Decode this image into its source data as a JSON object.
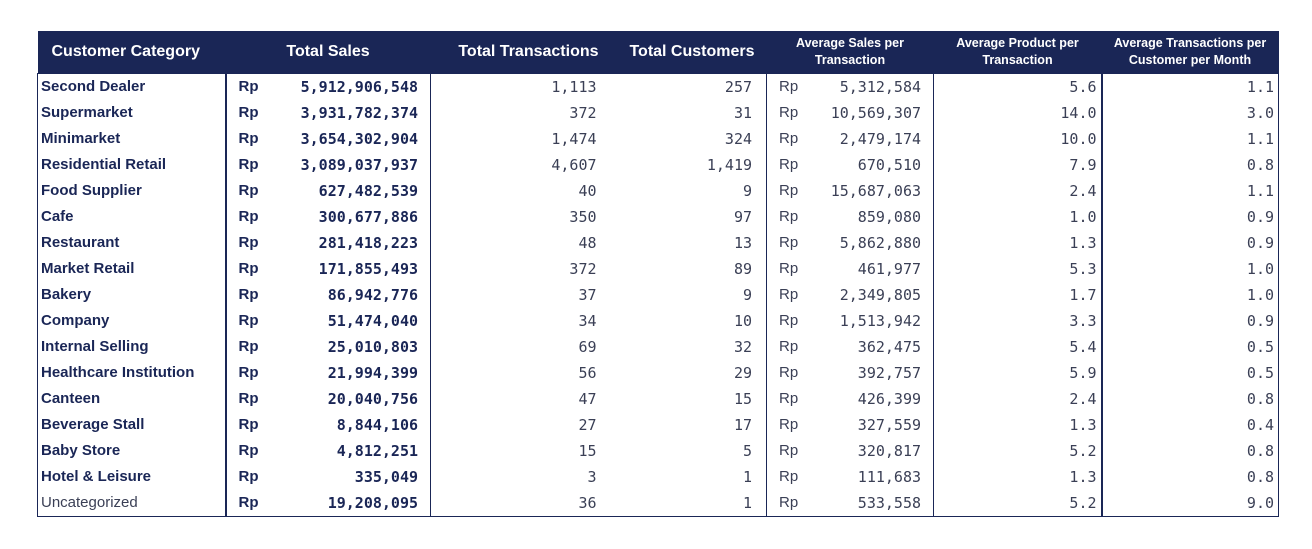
{
  "headers": {
    "category": "Customer Category",
    "total_sales": "Total Sales",
    "total_transactions": "Total Transactions",
    "total_customers": "Total Customers",
    "avg_sales_line1": "Average Sales per",
    "avg_sales_line2": "Transaction",
    "avg_product_line1": "Average Product per",
    "avg_product_line2": "Transaction",
    "avg_trans_line1": "Average Transactions per",
    "avg_trans_line2": "Customer per Month"
  },
  "currency": "Rp",
  "rows": [
    {
      "category": "Second Dealer",
      "total_sales": "5,912,906,548",
      "transactions": "1,113",
      "customers": "257",
      "avg_sales": "5,312,584",
      "avg_product": "5.6",
      "avg_trans": "1.1"
    },
    {
      "category": "Supermarket",
      "total_sales": "3,931,782,374",
      "transactions": "372",
      "customers": "31",
      "avg_sales": "10,569,307",
      "avg_product": "14.0",
      "avg_trans": "3.0"
    },
    {
      "category": "Minimarket",
      "total_sales": "3,654,302,904",
      "transactions": "1,474",
      "customers": "324",
      "avg_sales": "2,479,174",
      "avg_product": "10.0",
      "avg_trans": "1.1"
    },
    {
      "category": "Residential Retail",
      "total_sales": "3,089,037,937",
      "transactions": "4,607",
      "customers": "1,419",
      "avg_sales": "670,510",
      "avg_product": "7.9",
      "avg_trans": "0.8"
    },
    {
      "category": "Food Supplier",
      "total_sales": "627,482,539",
      "transactions": "40",
      "customers": "9",
      "avg_sales": "15,687,063",
      "avg_product": "2.4",
      "avg_trans": "1.1"
    },
    {
      "category": "Cafe",
      "total_sales": "300,677,886",
      "transactions": "350",
      "customers": "97",
      "avg_sales": "859,080",
      "avg_product": "1.0",
      "avg_trans": "0.9"
    },
    {
      "category": "Restaurant",
      "total_sales": "281,418,223",
      "transactions": "48",
      "customers": "13",
      "avg_sales": "5,862,880",
      "avg_product": "1.3",
      "avg_trans": "0.9"
    },
    {
      "category": "Market Retail",
      "total_sales": "171,855,493",
      "transactions": "372",
      "customers": "89",
      "avg_sales": "461,977",
      "avg_product": "5.3",
      "avg_trans": "1.0"
    },
    {
      "category": "Bakery",
      "total_sales": "86,942,776",
      "transactions": "37",
      "customers": "9",
      "avg_sales": "2,349,805",
      "avg_product": "1.7",
      "avg_trans": "1.0"
    },
    {
      "category": "Company",
      "total_sales": "51,474,040",
      "transactions": "34",
      "customers": "10",
      "avg_sales": "1,513,942",
      "avg_product": "3.3",
      "avg_trans": "0.9"
    },
    {
      "category": "Internal Selling",
      "total_sales": "25,010,803",
      "transactions": "69",
      "customers": "32",
      "avg_sales": "362,475",
      "avg_product": "5.4",
      "avg_trans": "0.5"
    },
    {
      "category": "Healthcare Institution",
      "total_sales": "21,994,399",
      "transactions": "56",
      "customers": "29",
      "avg_sales": "392,757",
      "avg_product": "5.9",
      "avg_trans": "0.5"
    },
    {
      "category": "Canteen",
      "total_sales": "20,040,756",
      "transactions": "47",
      "customers": "15",
      "avg_sales": "426,399",
      "avg_product": "2.4",
      "avg_trans": "0.8"
    },
    {
      "category": "Beverage Stall",
      "total_sales": "8,844,106",
      "transactions": "27",
      "customers": "17",
      "avg_sales": "327,559",
      "avg_product": "1.3",
      "avg_trans": "0.4"
    },
    {
      "category": "Baby Store",
      "total_sales": "4,812,251",
      "transactions": "15",
      "customers": "5",
      "avg_sales": "320,817",
      "avg_product": "5.2",
      "avg_trans": "0.8"
    },
    {
      "category": "Hotel & Leisure",
      "total_sales": "335,049",
      "transactions": "3",
      "customers": "1",
      "avg_sales": "111,683",
      "avg_product": "1.3",
      "avg_trans": "0.8"
    },
    {
      "category": "Uncategorized",
      "total_sales": "19,208,095",
      "transactions": "36",
      "customers": "1",
      "avg_sales": "533,558",
      "avg_product": "5.2",
      "avg_trans": "9.0",
      "plain": true
    }
  ]
}
